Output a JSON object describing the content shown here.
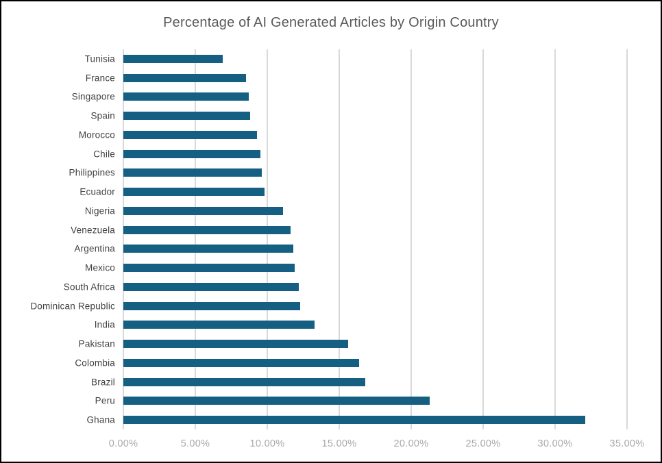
{
  "window": {
    "background_color": "#ffffff",
    "border_color": "#000000"
  },
  "chart_data": {
    "type": "bar",
    "orientation": "horizontal",
    "title": "Percentage of AI Generated Articles by Origin Country",
    "categories": [
      "Tunisia",
      "France",
      "Singapore",
      "Spain",
      "Morocco",
      "Chile",
      "Philippines",
      "Ecuador",
      "Nigeria",
      "Venezuela",
      "Argentina",
      "Mexico",
      "South Africa",
      "Dominican Republic",
      "India",
      "Pakistan",
      "Colombia",
      "Brazil",
      "Peru",
      "Ghana"
    ],
    "values": [
      6.9,
      8.5,
      8.7,
      8.8,
      9.3,
      9.5,
      9.6,
      9.8,
      11.1,
      11.6,
      11.8,
      11.9,
      12.2,
      12.3,
      13.3,
      15.6,
      16.4,
      16.8,
      21.3,
      32.1
    ],
    "value_unit": "%",
    "xlabel": "",
    "ylabel": "",
    "xlim": [
      0,
      35
    ],
    "x_tick_values": [
      0,
      5,
      10,
      15,
      20,
      25,
      30,
      35
    ],
    "x_tick_labels": [
      "0.00%",
      "5.00%",
      "10.00%",
      "15.00%",
      "20.00%",
      "25.00%",
      "30.00%",
      "35.00%"
    ],
    "grid": true,
    "legend_position": "none",
    "colors": {
      "bar": "#156082",
      "gridline": "#d9d9d9",
      "title_text": "#595959",
      "category_text": "#404040",
      "tick_text": "#a9a9a9"
    }
  }
}
